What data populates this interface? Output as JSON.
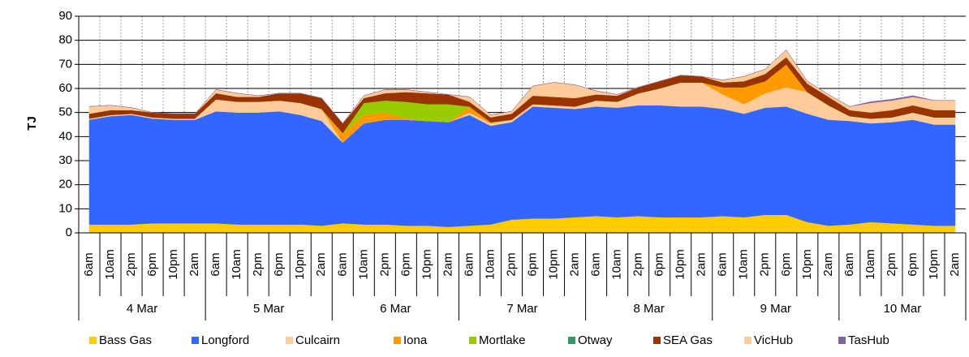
{
  "chart_data": {
    "type": "stacked_area",
    "y_label": "TJ",
    "categories": [
      "6am",
      "10am",
      "2pm",
      "6pm",
      "10pm",
      "2am",
      "6am",
      "10am",
      "2pm",
      "6pm",
      "10pm",
      "2am",
      "6am",
      "10am",
      "2pm",
      "6pm",
      "10pm",
      "2am",
      "6am",
      "10am",
      "2pm",
      "6pm",
      "10pm",
      "2am",
      "6am",
      "10am",
      "2pm",
      "6pm",
      "10pm",
      "2am",
      "6am",
      "10am",
      "2pm",
      "6pm",
      "10pm",
      "2am",
      "6am",
      "10am",
      "2pm",
      "6pm",
      "10pm",
      "2am"
    ],
    "groups": [
      "4 Mar",
      "5 Mar",
      "6 Mar",
      "7 Mar",
      "8 Mar",
      "9 Mar",
      "10 Mar"
    ],
    "ylim": [
      0,
      90
    ],
    "yticks": [
      0,
      10,
      20,
      30,
      40,
      50,
      60,
      70,
      80,
      90
    ],
    "grid": true,
    "series": [
      {
        "name": "Bass Gas",
        "color": "#ffcc00",
        "values": [
          3.5,
          3.5,
          3.5,
          4,
          4,
          4,
          4,
          3.5,
          3.5,
          3.5,
          3.5,
          3,
          4,
          3.5,
          3.5,
          3,
          3,
          2.5,
          3,
          3.5,
          5.5,
          6,
          6,
          6.5,
          7,
          6.5,
          7,
          6.5,
          6.5,
          6.5,
          7,
          6.5,
          7.5,
          7.5,
          4.5,
          3,
          3.5,
          4.5,
          4,
          3.5,
          3,
          3
        ]
      },
      {
        "name": "Longford",
        "color": "#3366ff",
        "values": [
          43.5,
          45,
          45.5,
          43.5,
          43,
          43,
          46.5,
          46.5,
          46.5,
          47,
          45.5,
          43.5,
          33.5,
          42,
          43.5,
          44,
          43.5,
          43.5,
          46,
          41,
          40.5,
          46.5,
          46,
          45,
          45.5,
          45.5,
          46,
          46.5,
          46,
          46,
          44.5,
          43,
          44.5,
          45,
          45,
          44,
          43,
          41,
          42,
          43.5,
          42,
          42
        ]
      },
      {
        "name": "Culcairn",
        "color": "#ffcc99",
        "values": [
          0.5,
          0.5,
          0.5,
          0.5,
          0.5,
          0.5,
          5,
          4.5,
          4.5,
          4.5,
          5,
          5,
          0,
          0,
          0,
          0,
          0,
          0,
          1,
          1,
          1,
          1,
          1,
          1,
          2.5,
          2.5,
          5,
          7,
          10,
          10,
          6,
          4,
          6,
          8,
          9,
          6,
          2,
          2,
          2,
          3,
          3,
          3
        ]
      },
      {
        "name": "Iona",
        "color": "#ff9900",
        "values": [
          0,
          0,
          0,
          0,
          0,
          0,
          0,
          0,
          0,
          0,
          0,
          0,
          4,
          3.5,
          3,
          0.5,
          0,
          0,
          2.5,
          0.5,
          0,
          0,
          0,
          0,
          0,
          0,
          0,
          0,
          0,
          0,
          3,
          7,
          5,
          9.5,
          0,
          0,
          0,
          0,
          0,
          0,
          0,
          0
        ]
      },
      {
        "name": "Mortlake",
        "color": "#99cc00",
        "values": [
          0,
          0,
          0,
          0,
          0,
          0,
          0,
          0,
          0,
          0,
          0,
          0,
          0,
          5,
          5,
          7,
          7,
          7.5,
          0,
          0,
          0,
          0,
          0,
          0,
          0,
          0,
          0,
          0,
          0,
          0,
          0,
          0,
          0,
          0,
          0,
          0,
          0,
          0,
          0,
          0,
          0,
          0
        ]
      },
      {
        "name": "Otway",
        "color": "#339966",
        "values": [
          0,
          0,
          0,
          0,
          0,
          0,
          0,
          0,
          0,
          0,
          0,
          0,
          0,
          0,
          0,
          0,
          0,
          0,
          0,
          0,
          0,
          0,
          0,
          0,
          0,
          0,
          0,
          0,
          0,
          0,
          0,
          0,
          0,
          0,
          0,
          0,
          0,
          0,
          0,
          0,
          0,
          0
        ]
      },
      {
        "name": "SEA Gas",
        "color": "#993300",
        "values": [
          2,
          2,
          1.5,
          2,
          2,
          2,
          2.5,
          2,
          2,
          3,
          4,
          4.5,
          4,
          2,
          3,
          4,
          4.5,
          4,
          2,
          2,
          2.5,
          3.5,
          3.5,
          3.5,
          2.5,
          2.5,
          2.5,
          3,
          3,
          2.5,
          2,
          2.5,
          3,
          3,
          3.5,
          3.5,
          2.5,
          2.5,
          3,
          3,
          3,
          3
        ]
      },
      {
        "name": "VicHub",
        "color": "#ffcc99",
        "values": [
          3,
          2,
          1,
          0,
          0,
          0,
          1.5,
          1.5,
          0.5,
          0,
          0,
          0,
          0,
          1,
          1.5,
          1,
          0.5,
          0,
          2,
          1,
          1,
          4,
          6,
          5.5,
          1.5,
          0.5,
          0,
          0,
          0,
          0,
          1,
          2,
          2,
          3,
          1,
          1,
          1.5,
          4,
          4,
          3.5,
          4,
          4
        ]
      },
      {
        "name": "TasHub",
        "color": "#8064a2",
        "values": [
          0,
          0,
          0,
          0,
          0,
          0,
          0,
          0,
          0,
          0,
          0,
          0,
          0,
          0,
          0,
          0,
          0,
          0,
          0,
          0,
          0,
          0,
          0,
          0,
          0,
          0,
          0,
          0,
          0,
          0,
          0,
          0,
          0,
          0,
          0,
          0,
          0,
          0.5,
          0.5,
          0.5,
          0,
          0
        ]
      }
    ]
  }
}
